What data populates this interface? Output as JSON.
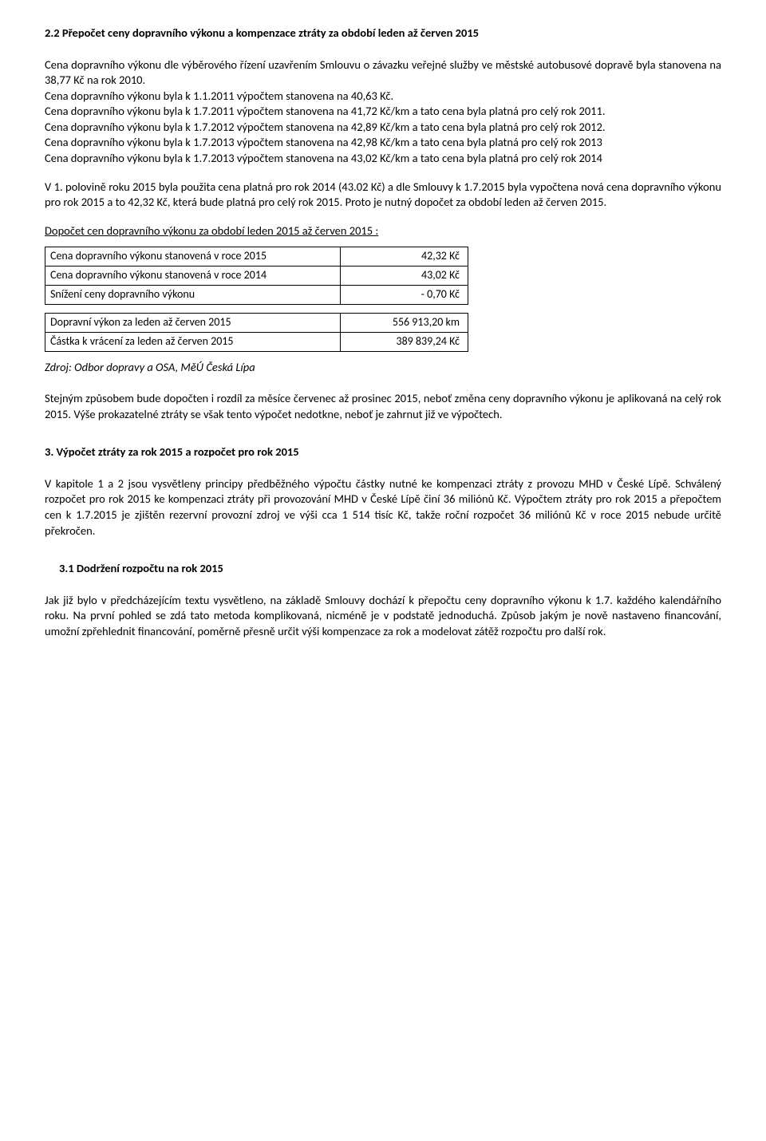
{
  "s1": {
    "head": "2.2 Přepočet ceny dopravního výkonu a kompenzace ztráty za období leden až červen 2015",
    "p1": "Cena dopravního výkonu dle výběrového řízení uzavřením Smlouvu o závazku veřejné služby ve městské autobusové dopravě byla stanovena na 38,77 Kč na rok 2010.",
    "p2": "Cena dopravního výkonu byla k 1.1.2011 výpočtem stanovena na 40,63 Kč.",
    "p3": "Cena dopravního výkonu byla k 1.7.2011 výpočtem stanovena na 41,72 Kč/km a tato cena byla platná pro celý rok 2011.",
    "p4": "Cena dopravního výkonu byla k 1.7.2012 výpočtem stanovena na 42,89 Kč/km a tato cena byla platná pro celý rok 2012.",
    "p5": "Cena dopravního výkonu byla k 1.7.2013 výpočtem stanovena na 42,98 Kč/km a tato cena byla platná pro celý rok 2013",
    "p6": "Cena dopravního výkonu byla k 1.7.2013 výpočtem stanovena na 43,02 Kč/km a tato cena byla platná pro celý rok 2014",
    "p7": "V 1. polovině roku 2015 byla použita cena platná pro rok 2014 (43.02 Kč) a dle Smlouvy k 1.7.2015 byla vypočtena nová cena dopravního výkonu pro rok 2015 a to 42,32 Kč, která bude platná pro celý rok 2015. Proto je nutný dopočet za období leden až červen 2015.",
    "sub1": "Dopočet cen dopravního výkonu za období leden 2015 až červen 2015 :"
  },
  "t1": {
    "r1l": "Cena dopravního výkonu stanovená v roce 2015",
    "r1v": "42,32 Kč",
    "r2l": "Cena dopravního výkonu stanovená v roce 2014",
    "r2v": "43,02 Kč",
    "r3l": "Snížení ceny dopravního výkonu",
    "r3v": "- 0,70 Kč"
  },
  "t2": {
    "r1l": "Dopravní výkon za leden až červen 2015",
    "r1v": "556 913,20 km",
    "r2l": "Částka k vrácení za leden až červen 2015",
    "r2v": "389 839,24 Kč"
  },
  "src": "Zdroj: Odbor dopravy a OSA, MěÚ Česká Lípa",
  "p8": "Stejným způsobem bude dopočten i rozdíl za měsíce červenec až prosinec 2015, neboť změna ceny dopravního výkonu je aplikovaná na celý rok 2015. Výše prokazatelné ztráty se však tento výpočet nedotkne, neboť je zahrnut již ve výpočtech.",
  "s2": {
    "head": "3. Výpočet ztráty za rok 2015 a rozpočet pro rok 2015",
    "p1": "V kapitole 1 a 2 jsou vysvětleny principy předběžného výpočtu částky nutné ke kompenzaci ztráty z provozu MHD v České Lípě. Schválený rozpočet pro rok 2015 ke kompenzaci ztráty při provozování MHD v České Lípě činí 36 miliónů Kč. Výpočtem ztráty pro rok 2015 a přepočtem cen k 1.7.2015 je zjištěn rezervní provozní zdroj ve výši cca 1 514 tisíc Kč, takže roční rozpočet 36 miliónů Kč v roce 2015 nebude určitě překročen."
  },
  "s3": {
    "head": "3.1 Dodržení rozpočtu na rok 2015",
    "p1": "Jak již bylo v předcházejícím textu vysvětleno, na základě Smlouvy dochází k přepočtu ceny dopravního výkonu k 1.7. každého kalendářního roku. Na první pohled se zdá tato metoda komplikovaná, nicméně je v podstatě jednoduchá. Způsob jakým je nově nastaveno financování, umožní zpřehlednit financování, poměrně přesně určit výši kompenzace za rok a modelovat zátěž rozpočtu pro další rok."
  }
}
